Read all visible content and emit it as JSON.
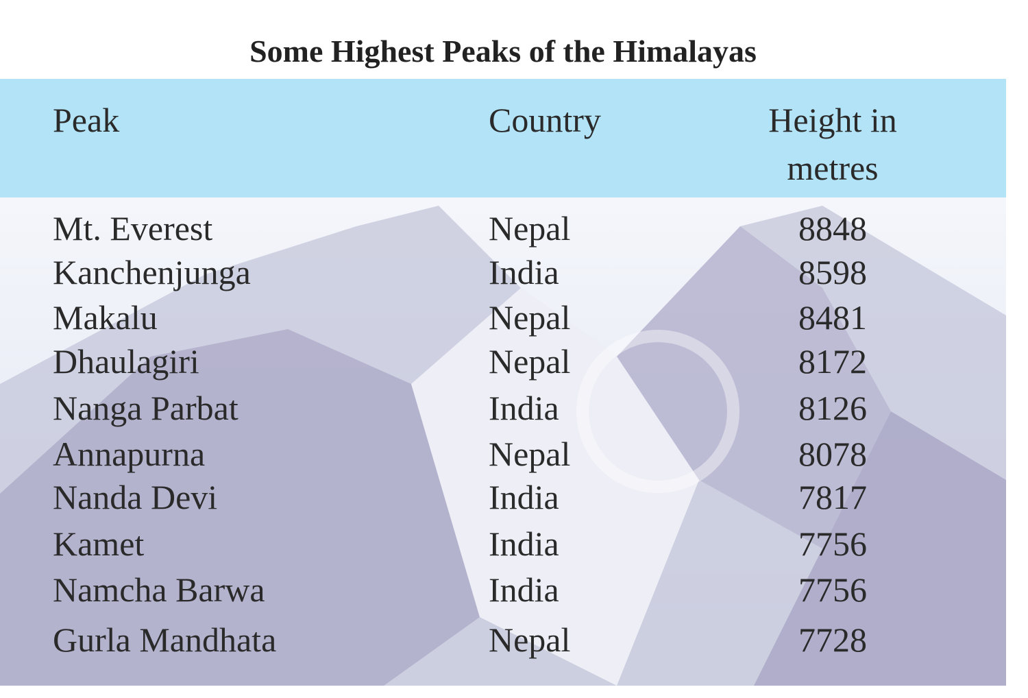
{
  "header": {
    "title": "Some Highest Peaks of the Himalayas"
  },
  "table": {
    "columns": [
      "Peak",
      "Country",
      "Height in metres"
    ],
    "rows": [
      [
        "Mt. Everest",
        "Nepal",
        "8848"
      ],
      [
        "Kanchenjunga",
        "India",
        "8598"
      ],
      [
        "Makalu",
        "Nepal",
        "8481"
      ],
      [
        "Dhaulagiri",
        "Nepal",
        "8172"
      ],
      [
        "Nanga Parbat",
        "India",
        "8126"
      ],
      [
        "Annapurna",
        "Nepal",
        "8078"
      ],
      [
        "Nanda Devi",
        "India",
        "7817"
      ],
      [
        "Kamet",
        "India",
        "7756"
      ],
      [
        "Namcha Barwa",
        "India",
        "7756"
      ],
      [
        "Gurla Mandhata",
        "Nepal",
        "7728"
      ]
    ]
  }
}
